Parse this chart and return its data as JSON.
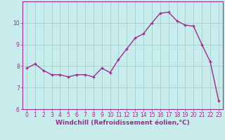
{
  "x": [
    0,
    1,
    2,
    3,
    4,
    5,
    6,
    7,
    8,
    9,
    10,
    11,
    12,
    13,
    14,
    15,
    16,
    17,
    18,
    19,
    20,
    21,
    22,
    23
  ],
  "y": [
    7.9,
    8.1,
    7.8,
    7.6,
    7.6,
    7.5,
    7.6,
    7.6,
    7.5,
    7.9,
    7.7,
    8.3,
    8.8,
    9.3,
    9.5,
    10.0,
    10.45,
    10.5,
    10.1,
    9.9,
    9.85,
    9.0,
    8.2,
    6.4
  ],
  "line_color": "#9b2d8e",
  "marker": "+",
  "marker_size": 3.5,
  "marker_lw": 1.0,
  "bg_color": "#c8ecec",
  "grid_color": "#a8d4d4",
  "xlabel": "Windchill (Refroidissement éolien,°C)",
  "xlim": [
    -0.5,
    23.5
  ],
  "ylim": [
    6,
    11
  ],
  "yticks": [
    6,
    7,
    8,
    9,
    10
  ],
  "xticks": [
    0,
    1,
    2,
    3,
    4,
    5,
    6,
    7,
    8,
    9,
    10,
    11,
    12,
    13,
    14,
    15,
    16,
    17,
    18,
    19,
    20,
    21,
    22,
    23
  ],
  "tick_label_size": 5.5,
  "xlabel_size": 6.5,
  "axis_color": "#9b2d8e",
  "label_color": "#9b2d8e",
  "line_width": 1.0
}
